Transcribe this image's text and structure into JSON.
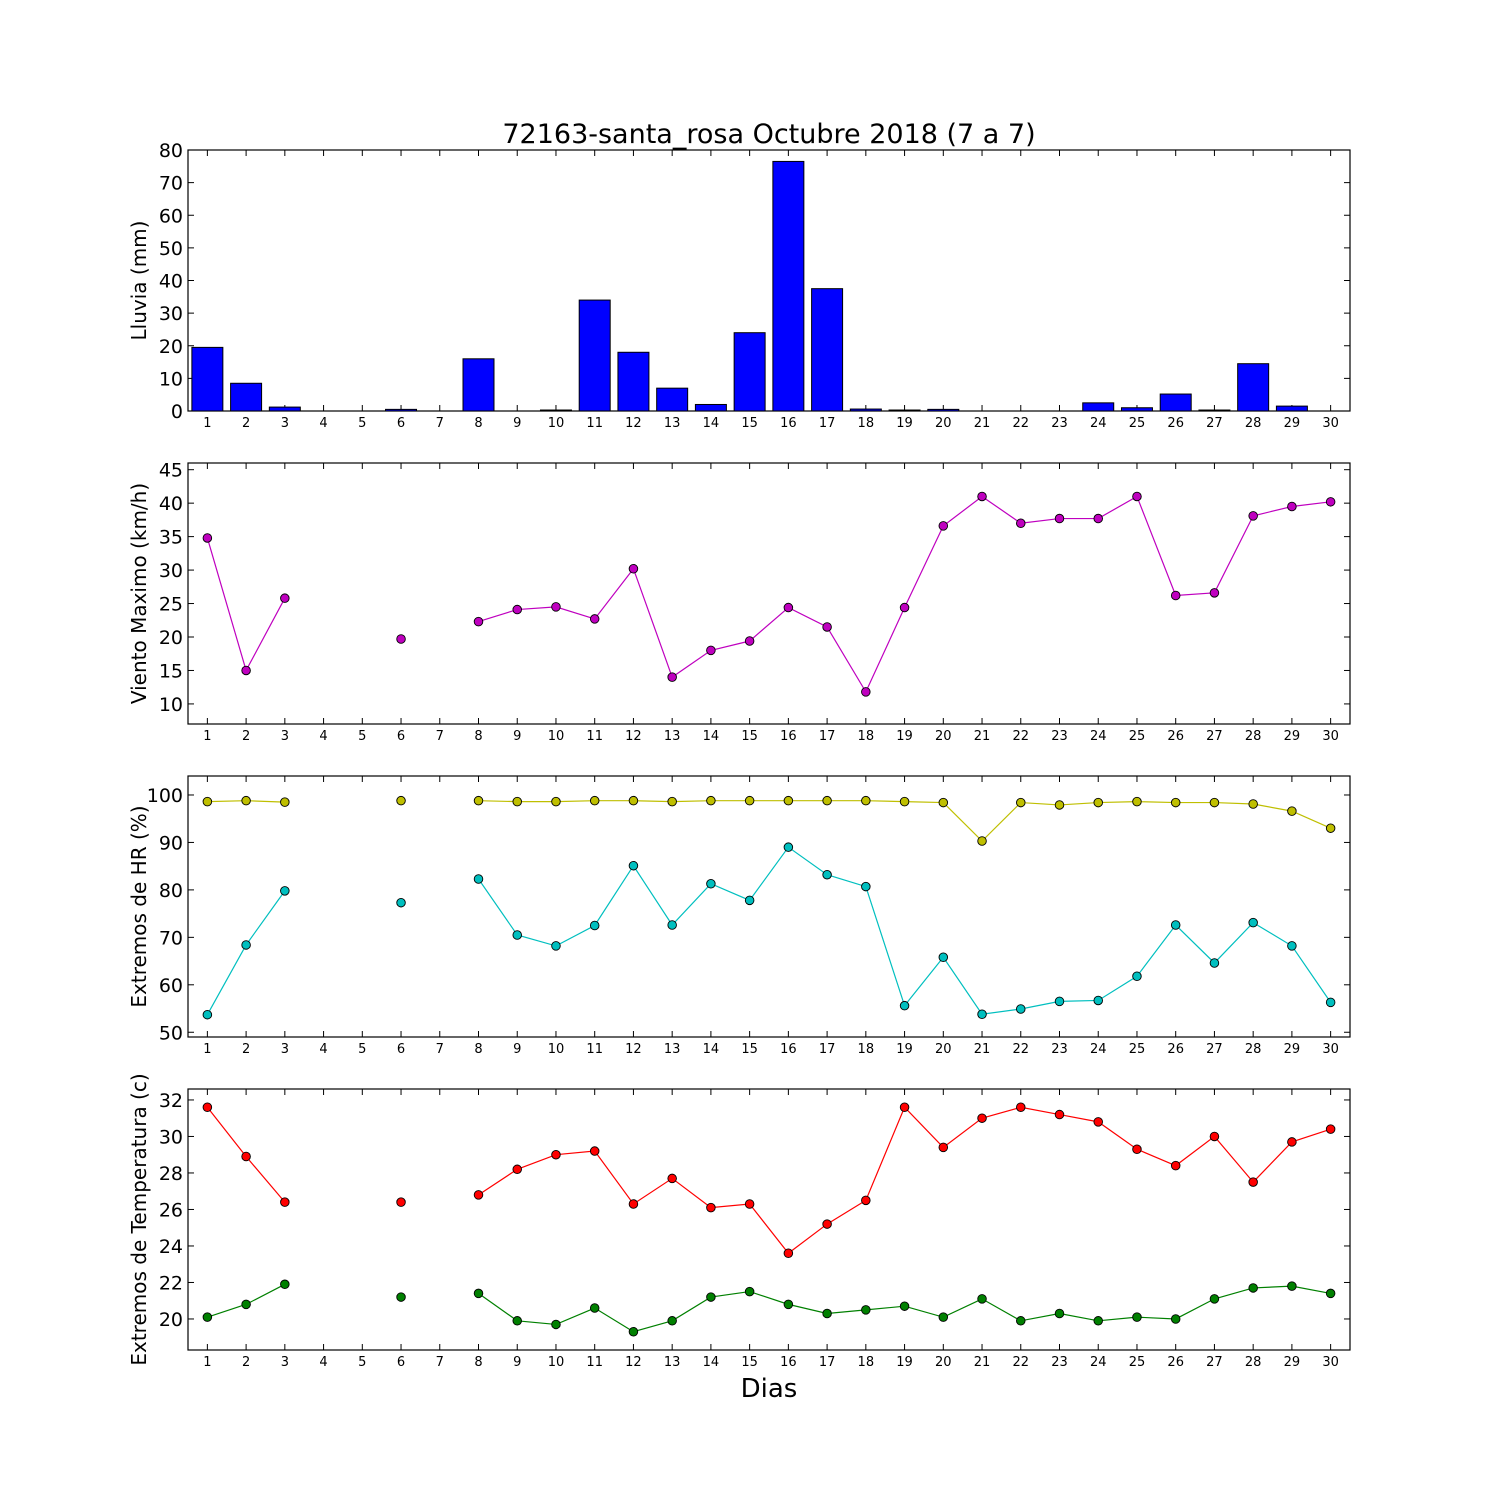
{
  "title": "72163-santa_rosa Octubre 2018  (7 a 7)",
  "xlabel": "Dias",
  "chart_data": [
    {
      "type": "bar",
      "ylabel": "Lluvia (mm)",
      "ylim": [
        0,
        80
      ],
      "yticks": [
        "0",
        "10",
        "20",
        "30",
        "40",
        "50",
        "60",
        "70",
        "80"
      ],
      "categories": [
        1,
        2,
        3,
        4,
        5,
        6,
        7,
        8,
        9,
        10,
        11,
        12,
        13,
        14,
        15,
        16,
        17,
        18,
        19,
        20,
        21,
        22,
        23,
        24,
        25,
        26,
        27,
        28,
        29,
        30
      ],
      "values": [
        19.5,
        8.5,
        1.2,
        0,
        0,
        0.5,
        0,
        16,
        0,
        0.3,
        34,
        18,
        7,
        2,
        24,
        76.5,
        37.5,
        0.6,
        0.3,
        0.5,
        0,
        0,
        0,
        2.5,
        1,
        5.2,
        0.3,
        14.5,
        1.5,
        0
      ],
      "colors": {
        "bar": "#0000ff"
      }
    },
    {
      "type": "line",
      "ylabel": "Viento Maximo (km/h)",
      "ylim": [
        7,
        46
      ],
      "yticks": [
        "10",
        "15",
        "20",
        "25",
        "30",
        "35",
        "40",
        "45"
      ],
      "x": [
        1,
        2,
        3,
        4,
        5,
        6,
        7,
        8,
        9,
        10,
        11,
        12,
        13,
        14,
        15,
        16,
        17,
        18,
        19,
        20,
        21,
        22,
        23,
        24,
        25,
        26,
        27,
        28,
        29,
        30
      ],
      "series": [
        {
          "values": [
            34.8,
            15,
            25.8,
            null,
            null,
            19.7,
            null,
            22.3,
            24.1,
            24.5,
            22.7,
            30.2,
            14,
            18,
            19.4,
            24.4,
            21.5,
            11.8,
            24.4,
            36.6,
            41,
            37,
            37.7,
            37.7,
            41,
            26.2,
            26.6,
            38.1,
            39.5,
            40.2
          ],
          "color": "#bf00bf"
        }
      ]
    },
    {
      "type": "line",
      "ylabel": "Extremos de HR (%)",
      "ylim": [
        49,
        104
      ],
      "yticks": [
        "50",
        "60",
        "70",
        "80",
        "90",
        "100"
      ],
      "x": [
        1,
        2,
        3,
        4,
        5,
        6,
        7,
        8,
        9,
        10,
        11,
        12,
        13,
        14,
        15,
        16,
        17,
        18,
        19,
        20,
        21,
        22,
        23,
        24,
        25,
        26,
        27,
        28,
        29,
        30
      ],
      "series": [
        {
          "values": [
            98.6,
            98.8,
            98.5,
            null,
            null,
            98.8,
            null,
            98.8,
            98.6,
            98.6,
            98.8,
            98.8,
            98.6,
            98.8,
            98.8,
            98.8,
            98.8,
            98.8,
            98.6,
            98.4,
            90.3,
            98.4,
            97.9,
            98.4,
            98.6,
            98.4,
            98.4,
            98.1,
            96.6,
            93
          ],
          "color": "#bfbf00"
        },
        {
          "values": [
            53.7,
            68.4,
            79.8,
            null,
            null,
            77.3,
            null,
            82.3,
            70.5,
            68.2,
            72.5,
            85.1,
            72.6,
            81.3,
            77.8,
            89,
            83.2,
            80.7,
            55.6,
            65.8,
            53.8,
            54.9,
            56.5,
            56.7,
            61.8,
            72.6,
            64.6,
            73.1,
            68.2,
            56.3
          ],
          "color": "#00bfbf"
        }
      ]
    },
    {
      "type": "line",
      "ylabel": "Extremos de Temperatura (c)",
      "ylim": [
        18.3,
        32.6
      ],
      "yticks": [
        "20",
        "22",
        "24",
        "26",
        "28",
        "30",
        "32"
      ],
      "x": [
        1,
        2,
        3,
        4,
        5,
        6,
        7,
        8,
        9,
        10,
        11,
        12,
        13,
        14,
        15,
        16,
        17,
        18,
        19,
        20,
        21,
        22,
        23,
        24,
        25,
        26,
        27,
        28,
        29,
        30
      ],
      "series": [
        {
          "values": [
            31.6,
            28.9,
            26.4,
            null,
            null,
            26.4,
            null,
            26.8,
            28.2,
            29,
            29.2,
            26.3,
            27.7,
            26.1,
            26.3,
            23.6,
            25.2,
            26.5,
            31.6,
            29.4,
            31,
            31.6,
            31.2,
            30.8,
            29.3,
            28.4,
            30,
            27.5,
            29.7,
            30.4
          ],
          "color": "#ff0000"
        },
        {
          "values": [
            20.1,
            20.8,
            21.9,
            null,
            null,
            21.2,
            null,
            21.4,
            19.9,
            19.7,
            20.6,
            19.3,
            19.9,
            21.2,
            21.5,
            20.8,
            20.3,
            20.5,
            20.7,
            20.1,
            21.1,
            19.9,
            20.3,
            19.9,
            20.1,
            20,
            21.1,
            21.7,
            21.8,
            21.4
          ],
          "color": "#008000"
        }
      ]
    }
  ]
}
